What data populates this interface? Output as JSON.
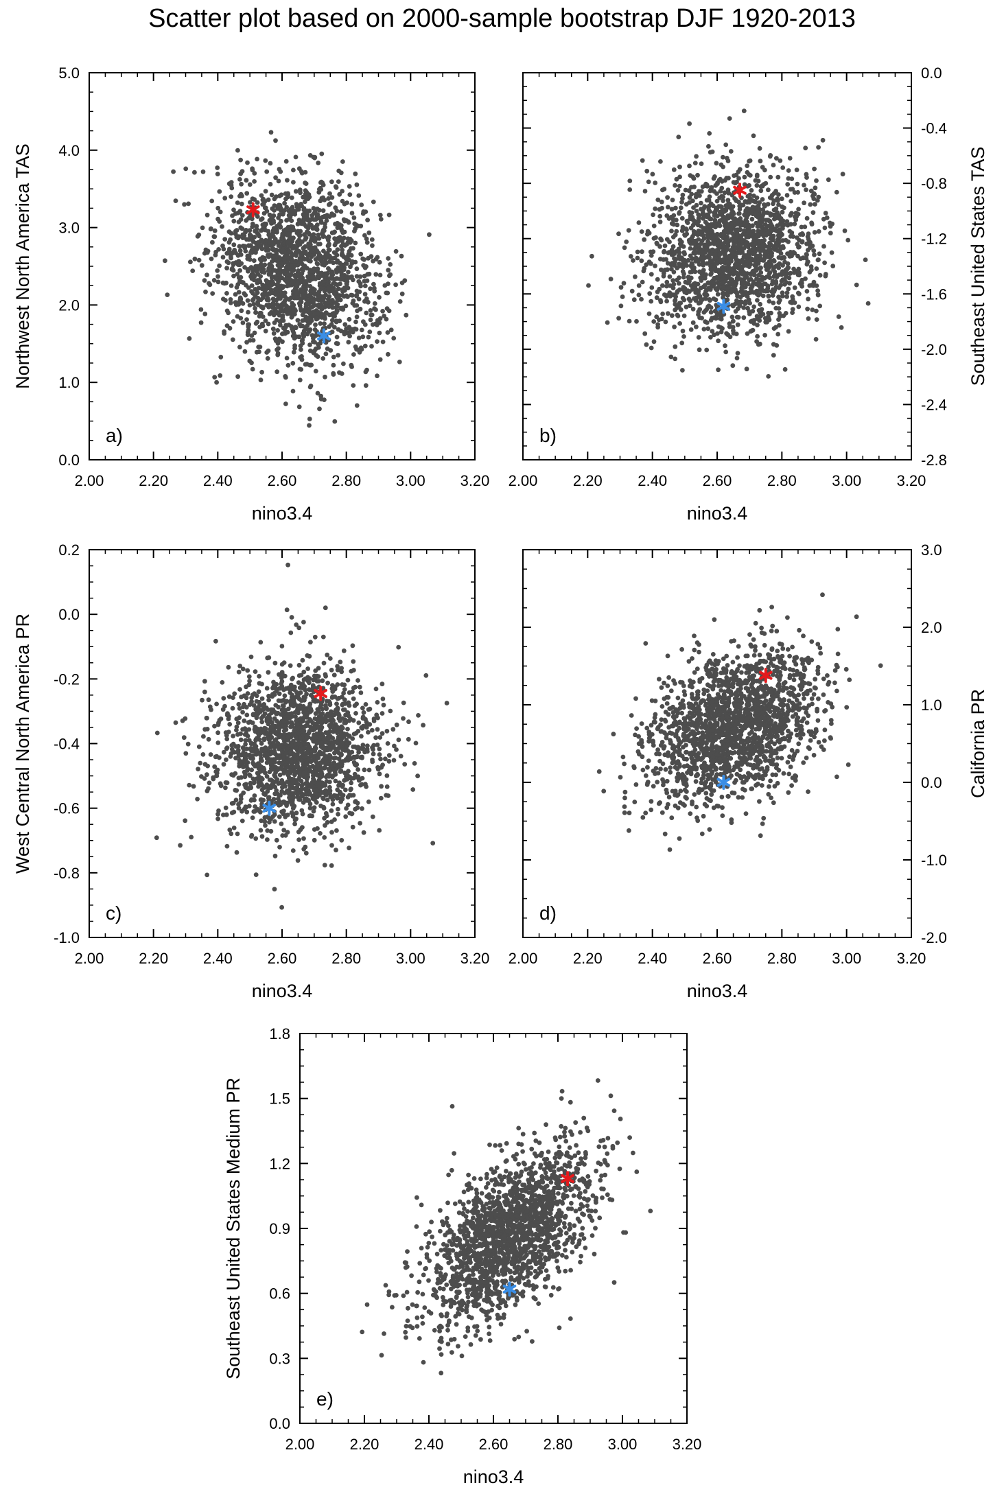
{
  "title": "Scatter plot based on 2000-sample bootstrap DJF 1920-2013",
  "colors": {
    "points": "#4d4d4d",
    "red_marker": "#e41a1c",
    "blue_marker": "#3a8ee6",
    "frame": "#000000"
  },
  "chart_data": [
    {
      "type": "scatter",
      "panel_label": "a)",
      "xlabel": "nino3.4",
      "ylabel": "Northwest North America TAS",
      "y_axis_side": "left",
      "xlim": [
        2.0,
        3.2
      ],
      "ylim": [
        0.0,
        5.0
      ],
      "xticks": [
        "2.00",
        "2.20",
        "2.40",
        "2.60",
        "2.80",
        "3.00",
        "3.20"
      ],
      "yticks": [
        "0.0",
        "1.0",
        "2.0",
        "3.0",
        "4.0",
        "5.0"
      ],
      "cloud": {
        "count": 1800,
        "x_mean": 2.65,
        "x_std": 0.13,
        "y_mean": 2.45,
        "y_std": 0.6,
        "correlation": -0.2
      },
      "series": [
        {
          "marker": "red_marker",
          "points": [
            {
              "x": 2.51,
              "y": 3.23
            }
          ]
        },
        {
          "marker": "blue_marker",
          "points": [
            {
              "x": 2.73,
              "y": 1.6
            }
          ]
        }
      ]
    },
    {
      "type": "scatter",
      "panel_label": "b)",
      "xlabel": "nino3.4",
      "ylabel": "Southeast United States TAS",
      "y_axis_side": "right",
      "xlim": [
        2.0,
        3.2
      ],
      "ylim": [
        -2.8,
        0.0
      ],
      "xticks": [
        "2.00",
        "2.20",
        "2.40",
        "2.60",
        "2.80",
        "3.00",
        "3.20"
      ],
      "yticks": [
        "-2.8",
        "-2.4",
        "-2.0",
        "-1.6",
        "-1.2",
        "-0.8",
        "-0.4",
        "0.0"
      ],
      "cloud": {
        "count": 1800,
        "x_mean": 2.65,
        "x_std": 0.13,
        "y_mean": -1.3,
        "y_std": 0.3,
        "correlation": 0.05
      },
      "series": [
        {
          "marker": "red_marker",
          "points": [
            {
              "x": 2.67,
              "y": -0.85
            }
          ]
        },
        {
          "marker": "blue_marker",
          "points": [
            {
              "x": 2.62,
              "y": -1.69
            }
          ]
        }
      ]
    },
    {
      "type": "scatter",
      "panel_label": "c)",
      "xlabel": "nino3.4",
      "ylabel": "West Central North America PR",
      "y_axis_side": "left",
      "xlim": [
        2.0,
        3.2
      ],
      "ylim": [
        -1.0,
        0.2
      ],
      "xticks": [
        "2.00",
        "2.20",
        "2.40",
        "2.60",
        "2.80",
        "3.00",
        "3.20"
      ],
      "yticks": [
        "-1.0",
        "-0.8",
        "-0.6",
        "-0.4",
        "-0.2",
        "0.0",
        "0.2"
      ],
      "cloud": {
        "count": 1800,
        "x_mean": 2.65,
        "x_std": 0.13,
        "y_mean": -0.42,
        "y_std": 0.13,
        "correlation": 0.05
      },
      "series": [
        {
          "marker": "red_marker",
          "points": [
            {
              "x": 2.72,
              "y": -0.245
            }
          ]
        },
        {
          "marker": "blue_marker",
          "points": [
            {
              "x": 2.56,
              "y": -0.6
            }
          ]
        }
      ]
    },
    {
      "type": "scatter",
      "panel_label": "d)",
      "xlabel": "nino3.4",
      "ylabel": "California PR",
      "y_axis_side": "right",
      "xlim": [
        2.0,
        3.2
      ],
      "ylim": [
        -2.0,
        3.0
      ],
      "xticks": [
        "2.00",
        "2.20",
        "2.40",
        "2.60",
        "2.80",
        "3.00",
        "3.20"
      ],
      "yticks": [
        "-2.0",
        "-1.0",
        "0.0",
        "1.0",
        "2.0",
        "3.0"
      ],
      "cloud": {
        "count": 1800,
        "x_mean": 2.65,
        "x_std": 0.13,
        "y_mean": 0.75,
        "y_std": 0.5,
        "correlation": 0.35
      },
      "series": [
        {
          "marker": "red_marker",
          "points": [
            {
              "x": 2.75,
              "y": 1.38
            }
          ]
        },
        {
          "marker": "blue_marker",
          "points": [
            {
              "x": 2.62,
              "y": 0.0
            }
          ]
        }
      ]
    },
    {
      "type": "scatter",
      "panel_label": "e)",
      "xlabel": "nino3.4",
      "ylabel": "Southeast United States Medium PR",
      "y_axis_side": "left",
      "xlim": [
        2.0,
        3.2
      ],
      "ylim": [
        0.0,
        1.8
      ],
      "xticks": [
        "2.00",
        "2.20",
        "2.40",
        "2.60",
        "2.80",
        "3.00",
        "3.20"
      ],
      "yticks": [
        "0.0",
        "0.3",
        "0.6",
        "0.9",
        "1.2",
        "1.5",
        "1.8"
      ],
      "cloud": {
        "count": 1800,
        "x_mean": 2.65,
        "x_std": 0.13,
        "y_mean": 0.87,
        "y_std": 0.2,
        "correlation": 0.55
      },
      "series": [
        {
          "marker": "red_marker",
          "points": [
            {
              "x": 2.83,
              "y": 1.13
            }
          ]
        },
        {
          "marker": "blue_marker",
          "points": [
            {
              "x": 2.65,
              "y": 0.62
            }
          ]
        }
      ]
    }
  ]
}
